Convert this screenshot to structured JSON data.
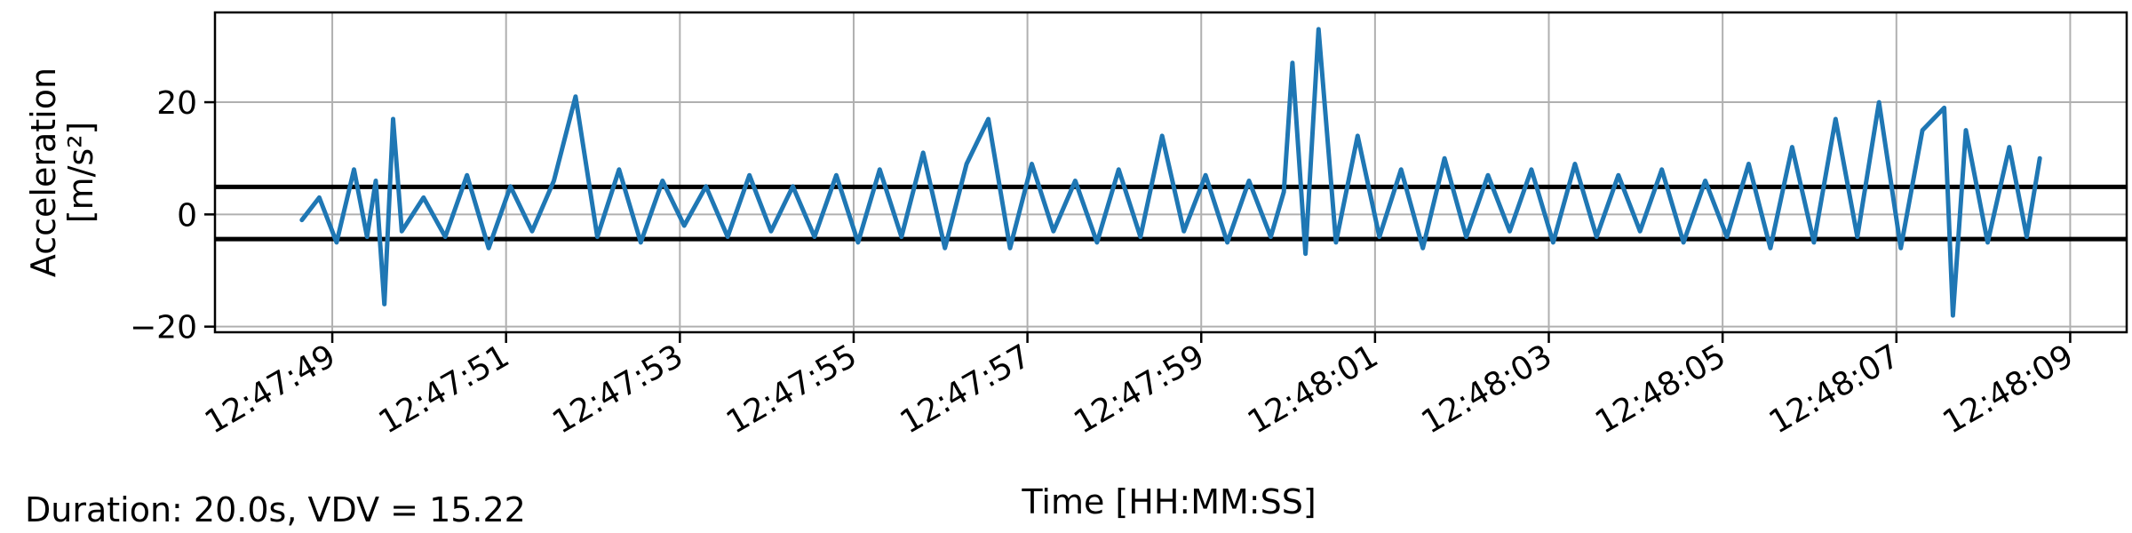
{
  "chart_data": {
    "type": "line",
    "title": "",
    "xlabel": "Time [HH:MM:SS]",
    "ylabel_line1": "Acceleration",
    "ylabel_line2": "[m/s²]",
    "xlim": [
      "12:47:47.65",
      "12:48:09.65"
    ],
    "ylim": [
      -21,
      36
    ],
    "x_ticks": [
      "12:47:49",
      "12:47:51",
      "12:47:53",
      "12:47:55",
      "12:47:57",
      "12:47:59",
      "12:48:01",
      "12:48:03",
      "12:48:05",
      "12:48:07",
      "12:48:09"
    ],
    "y_ticks": [
      -20,
      0,
      20
    ],
    "y_tick_labels": [
      "−20",
      "0",
      "20"
    ],
    "grid": true,
    "reference_lines": [
      4.9,
      -4.4
    ],
    "series": [
      {
        "color": "#1f77b4",
        "x": [
          "12:47:48.65",
          "12:47:48.85",
          "12:47:49.05",
          "12:47:49.25",
          "12:47:49.40",
          "12:47:49.50",
          "12:47:49.60",
          "12:47:49.70",
          "12:47:49.80",
          "12:47:50.05",
          "12:47:50.30",
          "12:47:50.55",
          "12:47:50.80",
          "12:47:51.05",
          "12:47:51.30",
          "12:47:51.55",
          "12:47:51.80",
          "12:47:52.05",
          "12:47:52.30",
          "12:47:52.55",
          "12:47:52.80",
          "12:47:53.05",
          "12:47:53.30",
          "12:47:53.55",
          "12:47:53.80",
          "12:47:54.05",
          "12:47:54.30",
          "12:47:54.55",
          "12:47:54.80",
          "12:47:55.05",
          "12:47:55.30",
          "12:47:55.55",
          "12:47:55.80",
          "12:47:56.05",
          "12:47:56.30",
          "12:47:56.55",
          "12:47:56.80",
          "12:47:57.05",
          "12:47:57.30",
          "12:47:57.55",
          "12:47:57.80",
          "12:47:58.05",
          "12:47:58.30",
          "12:47:58.55",
          "12:47:58.80",
          "12:47:59.05",
          "12:47:59.30",
          "12:47:59.55",
          "12:47:59.80",
          "12:47:59.95",
          "12:48:00.05",
          "12:48:00.20",
          "12:48:00.35",
          "12:48:00.55",
          "12:48:00.80",
          "12:48:01.05",
          "12:48:01.30",
          "12:48:01.55",
          "12:48:01.80",
          "12:48:02.05",
          "12:48:02.30",
          "12:48:02.55",
          "12:48:02.80",
          "12:48:03.05",
          "12:48:03.30",
          "12:48:03.55",
          "12:48:03.80",
          "12:48:04.05",
          "12:48:04.30",
          "12:48:04.55",
          "12:48:04.80",
          "12:48:05.05",
          "12:48:05.30",
          "12:48:05.55",
          "12:48:05.80",
          "12:48:06.05",
          "12:48:06.30",
          "12:48:06.55",
          "12:48:06.80",
          "12:48:07.05",
          "12:48:07.30",
          "12:48:07.55",
          "12:48:07.65",
          "12:48:07.80",
          "12:48:08.05",
          "12:48:08.30",
          "12:48:08.50",
          "12:48:08.65"
        ],
        "y": [
          -1,
          3,
          -5,
          8,
          -4,
          6,
          -16,
          17,
          -3,
          3,
          -4,
          7,
          -6,
          5,
          -3,
          6,
          21,
          -4,
          8,
          -5,
          6,
          -2,
          5,
          -4,
          7,
          -3,
          5,
          -4,
          7,
          -5,
          8,
          -4,
          11,
          -6,
          9,
          17,
          -6,
          9,
          -3,
          6,
          -5,
          8,
          -4,
          14,
          -3,
          7,
          -5,
          6,
          -4,
          4,
          27,
          -7,
          33,
          -5,
          14,
          -4,
          8,
          -6,
          10,
          -4,
          7,
          -3,
          8,
          -5,
          9,
          -4,
          7,
          -3,
          8,
          -5,
          6,
          -4,
          9,
          -6,
          12,
          -5,
          17,
          -4,
          20,
          -6,
          15,
          19,
          -18,
          15,
          -5,
          12,
          -4,
          10
        ]
      }
    ]
  },
  "footer": {
    "summary": "Duration: 20.0s, VDV = 15.22"
  }
}
